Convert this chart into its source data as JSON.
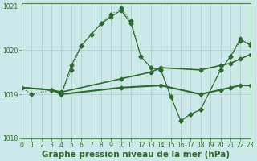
{
  "title": "Graphe pression niveau de la mer (hPa)",
  "bg_color": "#cce8e8",
  "grid_color": "#aacccc",
  "line_color": "#2d6a2d",
  "x_min": 0,
  "x_max": 23,
  "y_min": 1018,
  "y_max": 1021,
  "y_ticks": [
    1018,
    1019,
    1020,
    1021
  ],
  "x_ticks": [
    0,
    1,
    2,
    3,
    4,
    5,
    6,
    7,
    8,
    9,
    10,
    11,
    12,
    13,
    14,
    15,
    16,
    17,
    18,
    19,
    20,
    21,
    22,
    23
  ],
  "series": [
    {
      "x": [
        0,
        1,
        3,
        4,
        5,
        6,
        7,
        8,
        9,
        10,
        11,
        12,
        13,
        14,
        15,
        16,
        17,
        18,
        20,
        21,
        22,
        23
      ],
      "y": [
        1019.15,
        1019.0,
        1019.1,
        1019.0,
        1019.55,
        1020.1,
        1020.35,
        1020.6,
        1020.8,
        1020.95,
        1020.65,
        1019.85,
        1019.6,
        1019.55,
        1018.95,
        1018.4,
        1018.55,
        1018.65,
        1019.55,
        1019.85,
        1020.2,
        1020.15
      ],
      "style": "dotted",
      "marker": "D",
      "markersize": 2.5,
      "lw": 0.8
    },
    {
      "x": [
        0,
        3,
        4,
        5,
        6,
        7,
        8,
        9,
        10,
        11,
        12,
        13,
        14,
        15,
        16,
        17,
        18,
        20,
        21,
        22,
        23
      ],
      "y": [
        1019.15,
        1019.1,
        1019.0,
        1019.65,
        1020.1,
        1020.35,
        1020.6,
        1020.75,
        1020.9,
        1020.6,
        1019.85,
        1019.6,
        1019.55,
        1018.95,
        1018.4,
        1018.55,
        1018.65,
        1019.55,
        1019.85,
        1020.25,
        1020.1
      ],
      "style": "solid",
      "marker": "D",
      "markersize": 2.5,
      "lw": 0.8
    },
    {
      "x": [
        0,
        3,
        4,
        10,
        13,
        14,
        18,
        20,
        21,
        22,
        23
      ],
      "y": [
        1019.15,
        1019.1,
        1019.05,
        1019.35,
        1019.5,
        1019.6,
        1019.55,
        1019.65,
        1019.7,
        1019.8,
        1019.9
      ],
      "style": "solid",
      "marker": "D",
      "markersize": 2.5,
      "lw": 1.2
    },
    {
      "x": [
        0,
        3,
        4,
        10,
        14,
        18,
        20,
        21,
        22,
        23
      ],
      "y": [
        1019.15,
        1019.1,
        1019.0,
        1019.15,
        1019.2,
        1019.0,
        1019.1,
        1019.15,
        1019.2,
        1019.2
      ],
      "style": "solid",
      "marker": "D",
      "markersize": 2.5,
      "lw": 1.5
    }
  ],
  "label_fontsize": 7.5,
  "tick_fontsize": 5.5
}
